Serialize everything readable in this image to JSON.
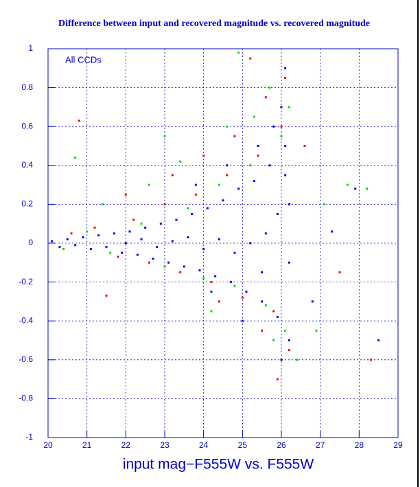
{
  "chart_data": {
    "type": "scatter",
    "title": "Difference between input and recovered magnitude vs. recovered magnitude",
    "x_label": "input mag−F555W vs. F555W",
    "annotation": "All CCDs",
    "xlim": [
      20,
      29
    ],
    "xticks": [
      20,
      21,
      22,
      23,
      24,
      25,
      26,
      27,
      28,
      29
    ],
    "ylim": [
      -1,
      1
    ],
    "yticks": [
      -1,
      -0.8,
      -0.6,
      -0.4,
      -0.2,
      0,
      0.2,
      0.4,
      0.6,
      0.8,
      1
    ],
    "grid": true,
    "axis_color": "#0000cc",
    "series": [
      {
        "color": "#0000ff",
        "x": [
          20.1,
          20.3,
          20.5,
          20.7,
          20.9,
          21.1,
          21.3,
          21.5,
          21.7,
          21.9,
          22.1,
          22.3,
          22.5,
          22.7,
          22.9,
          23.1,
          23.3,
          23.5,
          23.7,
          23.9,
          24.1,
          24.3,
          24.5,
          24.7,
          24.9,
          25.1,
          25.3,
          25.5,
          25.7,
          25.9,
          26.1,
          26.2,
          26.0,
          25.8,
          26.1,
          25.6,
          25.2,
          24.8,
          24.4,
          24.0,
          23.6,
          23.2,
          22.8,
          22.4,
          22.0,
          26.2,
          26.2,
          26.0,
          25.4,
          24.6,
          23.8,
          27.3,
          28.5,
          26.8,
          27.9,
          25.0,
          26.1,
          25.9,
          25.5,
          24.2
        ],
        "y": [
          0.01,
          -0.02,
          0.02,
          -0.01,
          0.03,
          -0.03,
          0.04,
          -0.02,
          0.05,
          -0.05,
          0.06,
          -0.06,
          0.08,
          -0.08,
          0.1,
          -0.1,
          0.12,
          -0.12,
          0.15,
          -0.14,
          0.18,
          -0.17,
          0.22,
          -0.2,
          0.28,
          -0.25,
          0.32,
          -0.3,
          0.4,
          -0.38,
          0.5,
          -0.5,
          0.7,
          0.6,
          0.9,
          0.05,
          0,
          -0.05,
          0.02,
          -0.03,
          0.03,
          0.01,
          -0.02,
          0.02,
          0,
          0.2,
          -0.1,
          -0.6,
          0.5,
          0.4,
          0.3,
          0.06,
          -0.5,
          -0.3,
          0.28,
          -0.4,
          0.35,
          0.15,
          -0.15,
          -0.25
        ]
      },
      {
        "color": "#ff0000",
        "x": [
          20.6,
          21.2,
          21.8,
          22.2,
          22.6,
          23.0,
          23.4,
          23.8,
          24.2,
          24.6,
          25.0,
          25.4,
          25.8,
          26.0,
          26.1,
          25.6,
          24.8,
          24.0,
          23.2,
          22.0,
          20.8,
          25.2,
          26.2,
          25.5,
          24.4,
          27.5,
          28.3,
          26.6,
          25.9,
          21.5
        ],
        "y": [
          0.05,
          0.08,
          -0.07,
          0.12,
          -0.1,
          0.2,
          -0.15,
          0.25,
          -0.2,
          0.35,
          -0.28,
          0.45,
          -0.35,
          0.6,
          0.85,
          0.75,
          0.55,
          0.45,
          0.35,
          0.25,
          0.63,
          0.95,
          -0.55,
          -0.45,
          -0.3,
          -0.15,
          -0.6,
          0.5,
          -0.7,
          -0.27
        ]
      },
      {
        "color": "#00dd00",
        "x": [
          20.4,
          21.0,
          21.6,
          22.4,
          23.0,
          23.6,
          24.0,
          24.4,
          24.8,
          25.2,
          25.6,
          26.0,
          26.1,
          25.7,
          25.3,
          24.6,
          23.4,
          22.6,
          21.4,
          20.7,
          24.9,
          26.2,
          25.8,
          24.2,
          27.1,
          27.7,
          28.2,
          26.4,
          23.0,
          26.9
        ],
        "y": [
          -0.03,
          0.06,
          -0.05,
          0.1,
          -0.12,
          0.18,
          -0.18,
          0.3,
          -0.22,
          0.4,
          -0.32,
          0.55,
          -0.45,
          0.8,
          0.65,
          0.6,
          0.42,
          0.3,
          0.2,
          0.44,
          0.98,
          0.7,
          -0.5,
          -0.35,
          0.2,
          0.3,
          0.28,
          -0.6,
          0.55,
          -0.45
        ]
      }
    ]
  }
}
